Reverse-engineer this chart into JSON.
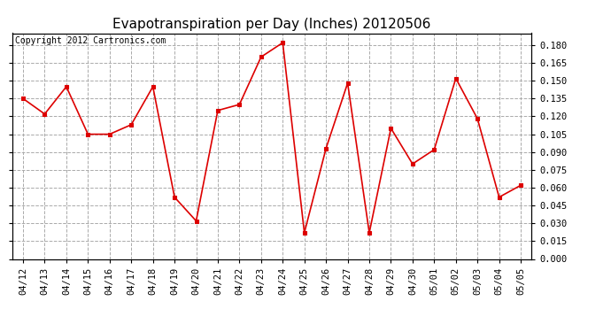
{
  "title": "Evapotranspiration per Day (Inches) 20120506",
  "copyright_text": "Copyright 2012 Cartronics.com",
  "dates": [
    "04/12",
    "04/13",
    "04/14",
    "04/15",
    "04/16",
    "04/17",
    "04/18",
    "04/19",
    "04/20",
    "04/21",
    "04/22",
    "04/23",
    "04/24",
    "04/25",
    "04/26",
    "04/27",
    "04/28",
    "04/29",
    "04/30",
    "05/01",
    "05/02",
    "05/03",
    "05/04",
    "05/05"
  ],
  "values": [
    0.135,
    0.122,
    0.145,
    0.105,
    0.105,
    0.113,
    0.145,
    0.052,
    0.032,
    0.125,
    0.13,
    0.17,
    0.182,
    0.022,
    0.093,
    0.148,
    0.022,
    0.11,
    0.08,
    0.092,
    0.152,
    0.118,
    0.052,
    0.062
  ],
  "line_color": "#dd0000",
  "marker": "s",
  "marker_size": 3,
  "marker_linewidth": 1.2,
  "line_width": 1.2,
  "ylim": [
    0.0,
    0.19
  ],
  "yticks": [
    0.0,
    0.015,
    0.03,
    0.045,
    0.06,
    0.075,
    0.09,
    0.105,
    0.12,
    0.135,
    0.15,
    0.165,
    0.18
  ],
  "grid_color": "#aaaaaa",
  "grid_linestyle": "--",
  "background_color": "#ffffff",
  "title_fontsize": 11,
  "copyright_fontsize": 7,
  "tick_fontsize": 7.5
}
